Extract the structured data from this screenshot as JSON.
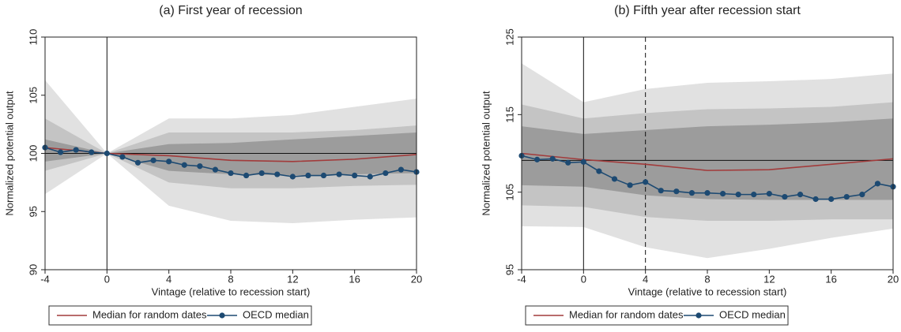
{
  "chart_data": [
    {
      "type": "line",
      "title": "(a) First year of recession",
      "xlabel": "Vintage (relative to recession start)",
      "ylabel": "Normalized potential output",
      "xlim": [
        -4,
        20
      ],
      "ylim": [
        90,
        110
      ],
      "xticks": [
        -4,
        0,
        4,
        8,
        12,
        16,
        20
      ],
      "yticks": [
        90,
        95,
        100,
        105,
        110
      ],
      "hline": 100,
      "vlines": [
        {
          "value": 0,
          "style": "solid"
        }
      ],
      "band_x": [
        -4,
        0,
        4,
        8,
        12,
        16,
        20
      ],
      "bands": [
        {
          "color": "#e1e1e1",
          "upper": [
            106.3,
            100,
            103,
            103,
            103.3,
            104,
            104.7
          ],
          "lower": [
            96.5,
            100,
            95.5,
            94.2,
            94,
            94.3,
            94.5
          ]
        },
        {
          "color": "#c4c4c4",
          "upper": [
            103,
            100,
            101.8,
            101.8,
            101.8,
            102,
            102.4
          ],
          "lower": [
            98.5,
            100,
            97.5,
            97,
            97,
            97.2,
            97.3
          ]
        },
        {
          "color": "#9c9c9c",
          "upper": [
            101.2,
            100,
            100.8,
            100.9,
            101.2,
            101.5,
            101.8
          ],
          "lower": [
            99.3,
            100,
            98.5,
            98.2,
            98.1,
            98.2,
            98.3
          ]
        }
      ],
      "series": [
        {
          "name": "Median for random dates",
          "color": "#a23b3b",
          "marker": false,
          "x": [
            -4,
            0,
            4,
            8,
            12,
            16,
            20
          ],
          "values": [
            100.5,
            100,
            99.8,
            99.4,
            99.3,
            99.5,
            99.9
          ]
        },
        {
          "name": "OECD median",
          "color": "#1d4a72",
          "marker": true,
          "x": [
            -4,
            -3,
            -2,
            -1,
            0,
            1,
            2,
            3,
            4,
            5,
            6,
            7,
            8,
            9,
            10,
            11,
            12,
            13,
            14,
            15,
            16,
            17,
            18,
            19,
            20
          ],
          "values": [
            100.5,
            100.1,
            100.3,
            100.1,
            100,
            99.7,
            99.2,
            99.4,
            99.3,
            99,
            98.9,
            98.6,
            98.3,
            98.1,
            98.3,
            98.2,
            98,
            98.1,
            98.1,
            98.2,
            98.1,
            98,
            98.3,
            98.6,
            98.4
          ]
        }
      ]
    },
    {
      "type": "line",
      "title": "(b) Fifth year after recession start",
      "xlabel": "Vintage (relative to recession start)",
      "ylabel": "Normalized potential output",
      "xlim": [
        -4,
        20
      ],
      "ylim": [
        95,
        125
      ],
      "xticks": [
        -4,
        0,
        4,
        8,
        12,
        16,
        20
      ],
      "yticks": [
        95,
        105,
        115,
        125
      ],
      "hline": 109.1,
      "vlines": [
        {
          "value": 0,
          "style": "solid"
        },
        {
          "value": 4,
          "style": "dashed"
        }
      ],
      "band_x": [
        -4,
        0,
        4,
        8,
        12,
        16,
        20
      ],
      "bands": [
        {
          "color": "#e1e1e1",
          "upper": [
            121.6,
            116.6,
            118.3,
            119.1,
            119.3,
            119.6,
            120.3
          ],
          "lower": [
            100.6,
            100.5,
            97.9,
            96.5,
            97.7,
            99.1,
            100.3
          ]
        },
        {
          "color": "#c4c4c4",
          "upper": [
            116.3,
            114.5,
            115.2,
            115.7,
            115.8,
            116,
            116.6
          ],
          "lower": [
            103.3,
            103.1,
            101.8,
            101.3,
            101.3,
            101.5,
            101.5
          ]
        },
        {
          "color": "#9c9c9c",
          "upper": [
            113.5,
            112.5,
            113,
            113.5,
            113.7,
            114,
            114.5
          ],
          "lower": [
            105.9,
            105.7,
            104.6,
            104.1,
            104,
            104,
            104
          ]
        }
      ],
      "series": [
        {
          "name": "Median for random dates",
          "color": "#a23b3b",
          "marker": false,
          "x": [
            -4,
            0,
            4,
            8,
            12,
            16,
            20
          ],
          "values": [
            110,
            109.2,
            108.6,
            107.8,
            107.9,
            108.6,
            109.3
          ]
        },
        {
          "name": "OECD median",
          "color": "#1d4a72",
          "marker": true,
          "x": [
            -4,
            -3,
            -2,
            -1,
            0,
            1,
            2,
            3,
            4,
            5,
            6,
            7,
            8,
            9,
            10,
            11,
            12,
            13,
            14,
            15,
            16,
            17,
            18,
            19,
            20
          ],
          "values": [
            109.7,
            109.2,
            109.3,
            108.8,
            108.9,
            107.7,
            106.7,
            105.9,
            106.3,
            105.2,
            105.1,
            104.9,
            104.9,
            104.8,
            104.7,
            104.7,
            104.8,
            104.4,
            104.7,
            104.1,
            104.1,
            104.4,
            104.7,
            106.1,
            105.7
          ]
        }
      ]
    }
  ]
}
